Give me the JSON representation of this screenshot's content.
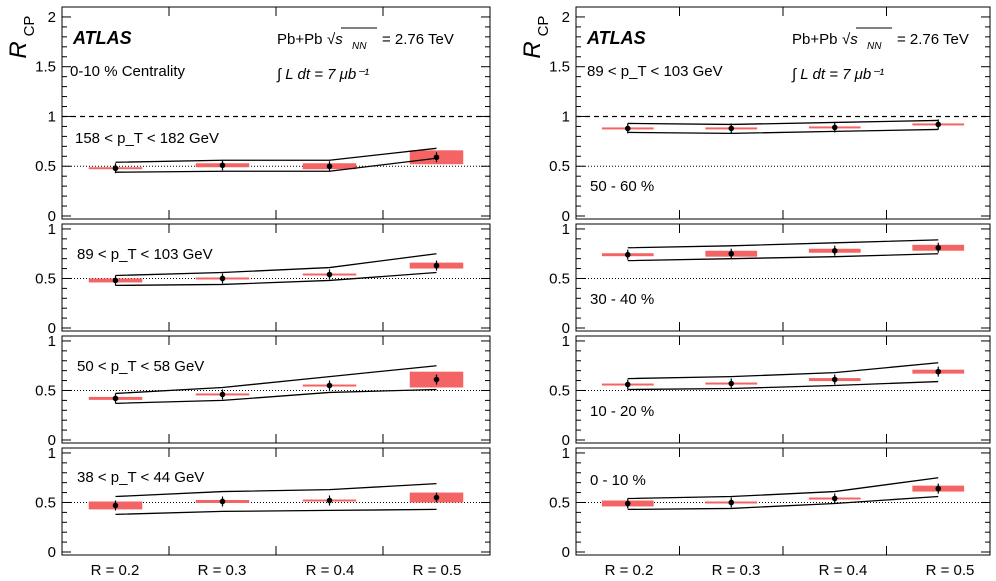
{
  "figure": {
    "y_axis_title": "R",
    "y_axis_title_sub": "CP",
    "x_tick_labels": [
      "R = 0.2",
      "R = 0.3",
      "R = 0.4",
      "R = 0.5"
    ],
    "atlas_label": "ATLAS",
    "collision": "Pb+Pb",
    "sqrt_s": "√s",
    "sqrt_sub": "NN",
    "energy": "= 2.76 TeV",
    "lumi": "∫ L dt = 7 μb⁻¹",
    "left_top_centrality": "0-10 % Centrality",
    "right_top_pt": "89 < p_T < 103 GeV"
  },
  "colors": {
    "syst_box": "#f46464",
    "band": "#000000",
    "marker": "#000000",
    "reference_line": "#000000"
  },
  "chart_data": [
    {
      "type": "scatter",
      "panel": "left-1",
      "label": "158 < p_T < 182 GeV",
      "categories": [
        "R = 0.2",
        "R = 0.3",
        "R = 0.4",
        "R = 0.5"
      ],
      "values": [
        0.48,
        0.51,
        0.5,
        0.59
      ],
      "syst": [
        0.01,
        0.02,
        0.03,
        0.07
      ],
      "band_low": [
        0.44,
        0.45,
        0.45,
        0.58
      ],
      "band_high": [
        0.54,
        0.56,
        0.56,
        0.68
      ],
      "ylim": [
        0,
        2.1
      ],
      "yticks": [
        0,
        0.5,
        1,
        1.5,
        2
      ]
    },
    {
      "type": "scatter",
      "panel": "left-2",
      "label": "89 < p_T < 103 GeV",
      "categories": [
        "R = 0.2",
        "R = 0.3",
        "R = 0.4",
        "R = 0.5"
      ],
      "values": [
        0.48,
        0.5,
        0.54,
        0.63
      ],
      "syst": [
        0.02,
        0.01,
        0.01,
        0.03
      ],
      "band_low": [
        0.43,
        0.44,
        0.48,
        0.56
      ],
      "band_high": [
        0.53,
        0.56,
        0.61,
        0.75
      ],
      "ylim": [
        0,
        1.05
      ],
      "yticks": [
        0,
        0.5,
        1
      ]
    },
    {
      "type": "scatter",
      "panel": "left-3",
      "label": "50 < p_T < 58 GeV",
      "categories": [
        "R = 0.2",
        "R = 0.3",
        "R = 0.4",
        "R = 0.5"
      ],
      "values": [
        0.42,
        0.46,
        0.55,
        0.61
      ],
      "syst": [
        0.015,
        0.01,
        0.01,
        0.08
      ],
      "band_low": [
        0.37,
        0.4,
        0.48,
        0.51
      ],
      "band_high": [
        0.47,
        0.53,
        0.64,
        0.75
      ],
      "ylim": [
        0,
        1.05
      ],
      "yticks": [
        0,
        0.5,
        1
      ]
    },
    {
      "type": "scatter",
      "panel": "left-4",
      "label": "38 < p_T < 44 GeV",
      "categories": [
        "R = 0.2",
        "R = 0.3",
        "R = 0.4",
        "R = 0.5"
      ],
      "values": [
        0.47,
        0.51,
        0.52,
        0.55
      ],
      "syst": [
        0.04,
        0.015,
        0.01,
        0.05
      ],
      "band_low": [
        0.38,
        0.41,
        0.42,
        0.43
      ],
      "band_high": [
        0.56,
        0.61,
        0.63,
        0.69
      ],
      "ylim": [
        0,
        1.05
      ],
      "yticks": [
        0,
        0.5,
        1
      ]
    },
    {
      "type": "scatter",
      "panel": "right-1",
      "label": "50 - 60 %",
      "categories": [
        "R = 0.2",
        "R = 0.3",
        "R = 0.4",
        "R = 0.5"
      ],
      "values": [
        0.88,
        0.88,
        0.89,
        0.92
      ],
      "syst": [
        0.01,
        0.01,
        0.01,
        0.01
      ],
      "band_low": [
        0.84,
        0.83,
        0.85,
        0.87
      ],
      "band_high": [
        0.93,
        0.92,
        0.94,
        0.96
      ],
      "ylim": [
        0,
        2.1
      ],
      "yticks": [
        0,
        0.5,
        1,
        1.5,
        2
      ]
    },
    {
      "type": "scatter",
      "panel": "right-2",
      "label": "30 - 40 %",
      "categories": [
        "R = 0.2",
        "R = 0.3",
        "R = 0.4",
        "R = 0.5"
      ],
      "values": [
        0.74,
        0.75,
        0.78,
        0.81
      ],
      "syst": [
        0.015,
        0.03,
        0.02,
        0.03
      ],
      "band_low": [
        0.68,
        0.7,
        0.72,
        0.75
      ],
      "band_high": [
        0.81,
        0.83,
        0.86,
        0.89
      ],
      "ylim": [
        0,
        1.05
      ],
      "yticks": [
        0,
        0.5,
        1
      ]
    },
    {
      "type": "scatter",
      "panel": "right-3",
      "label": "10 - 20 %",
      "categories": [
        "R = 0.2",
        "R = 0.3",
        "R = 0.4",
        "R = 0.5"
      ],
      "values": [
        0.56,
        0.57,
        0.61,
        0.69
      ],
      "syst": [
        0.01,
        0.01,
        0.015,
        0.02
      ],
      "band_low": [
        0.51,
        0.52,
        0.55,
        0.59
      ],
      "band_high": [
        0.62,
        0.64,
        0.68,
        0.78
      ],
      "ylim": [
        0,
        1.05
      ],
      "yticks": [
        0,
        0.5,
        1
      ]
    },
    {
      "type": "scatter",
      "panel": "right-4",
      "label": "0 - 10 %",
      "categories": [
        "R = 0.2",
        "R = 0.3",
        "R = 0.4",
        "R = 0.5"
      ],
      "values": [
        0.49,
        0.5,
        0.54,
        0.64
      ],
      "syst": [
        0.03,
        0.01,
        0.01,
        0.03
      ],
      "band_low": [
        0.43,
        0.44,
        0.49,
        0.56
      ],
      "band_high": [
        0.54,
        0.56,
        0.61,
        0.75
      ],
      "ylim": [
        0,
        1.05
      ],
      "yticks": [
        0,
        0.5,
        1
      ]
    }
  ]
}
